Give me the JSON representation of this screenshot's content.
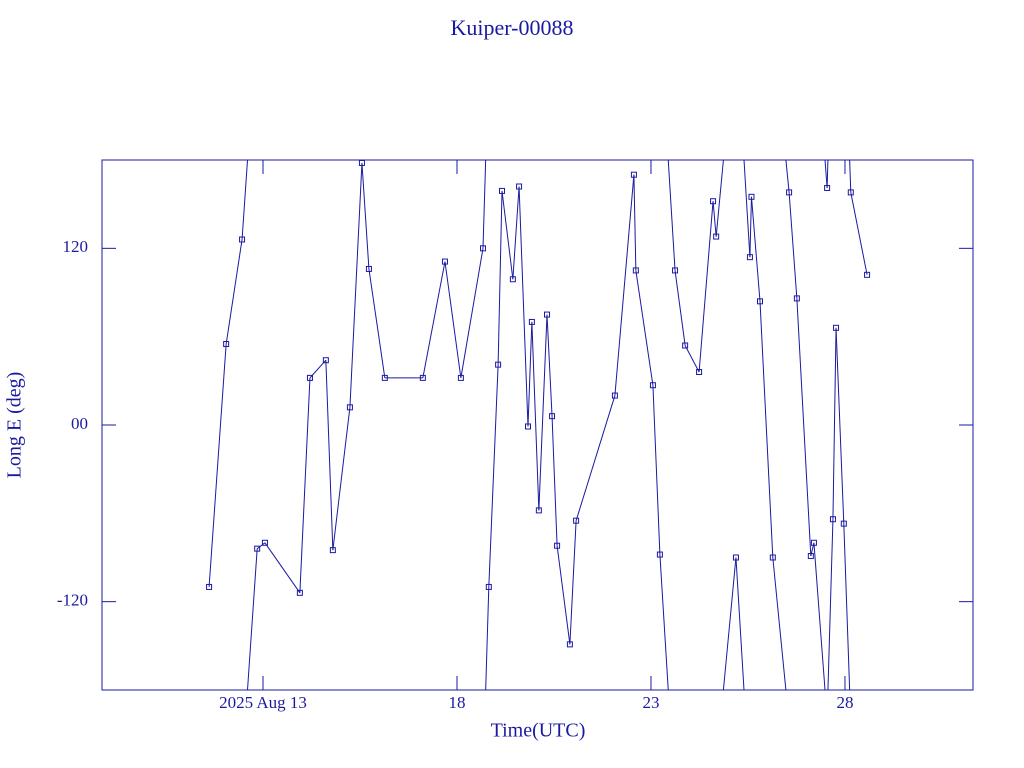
{
  "chart_data": {
    "type": "line",
    "title": "Kuiper-00088",
    "x_label": "Time(UTC)",
    "y_label": "Long E (deg)",
    "xlim": [
      8.85,
      31.3
    ],
    "xticks": [
      {
        "value": 13,
        "label": "2025 Aug 13"
      },
      18,
      23,
      28
    ],
    "ylim": [
      -180,
      180
    ],
    "yticks": [
      -120,
      {
        "value": 0,
        "label": "00"
      },
      120
    ],
    "wrap": true,
    "series": [
      {
        "name": "Long E",
        "color": "#1a1aa0",
        "x": [
          11.61,
          12.05,
          12.46,
          12.85,
          13.05,
          13.95,
          14.21,
          14.62,
          14.8,
          15.24,
          15.55,
          15.73,
          16.14,
          17.12,
          17.69,
          18.1,
          18.67,
          18.82,
          19.06,
          19.16,
          19.44,
          19.6,
          19.83,
          19.93,
          20.11,
          20.32,
          20.45,
          20.58,
          20.91,
          21.07,
          22.07,
          22.56,
          22.61,
          23.05,
          23.23,
          23.62,
          23.88,
          24.24,
          24.6,
          24.68,
          25.19,
          25.55,
          25.59,
          25.81,
          26.14,
          26.56,
          26.76,
          27.12,
          27.2,
          27.54,
          27.69,
          27.77,
          27.97,
          28.15,
          28.57
        ],
        "values": [
          -110,
          55,
          126,
          -84,
          -80,
          -114,
          32,
          44,
          -85,
          12,
          178,
          106,
          32,
          32,
          111,
          32,
          120,
          -110,
          41,
          159,
          99,
          162,
          -1,
          70,
          -58,
          75,
          6,
          -82,
          -149,
          -65,
          20,
          170,
          105,
          27,
          -88,
          105,
          54,
          36,
          152,
          128,
          -90,
          114,
          155,
          84,
          -90,
          158,
          86,
          -89,
          -80,
          161,
          -64,
          66,
          -67,
          158,
          102
        ]
      }
    ]
  }
}
